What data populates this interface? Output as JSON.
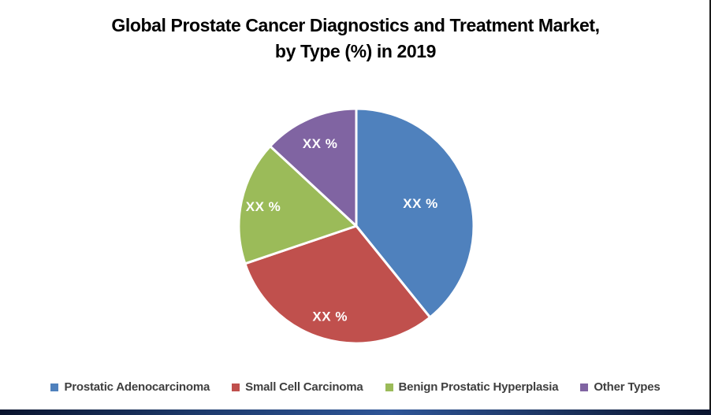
{
  "chart_title": {
    "line1": "Global Prostate Cancer Diagnostics and Treatment Market,",
    "line2": "by Type (%) in 2019"
  },
  "chart_data": {
    "type": "pie",
    "title": "Global Prostate Cancer Diagnostics and Treatment Market, by Type (%) in 2019",
    "start_angle_deg": 0,
    "direction": "clockwise",
    "legend_position": "bottom",
    "data_labels_masked": true,
    "values_estimated_from_arc_angles": true,
    "slices": [
      {
        "label": "Prostatic Adenocarcinoma",
        "data_label": "XX %",
        "value": 39.2,
        "color": "#4F81BD",
        "label_r_frac": 0.58
      },
      {
        "label": "Small Cell Carcinoma",
        "data_label": "XX %",
        "value": 30.6,
        "color": "#C0504D",
        "label_r_frac": 0.8
      },
      {
        "label": "Benign Prostatic Hyperplasia",
        "data_label": "XX %",
        "value": 17.1,
        "color": "#9BBB59",
        "label_r_frac": 0.81
      },
      {
        "label": "Other Types",
        "data_label": "XX %",
        "value": 13.1,
        "color": "#8064A2",
        "label_r_frac": 0.77
      }
    ]
  },
  "styles": {
    "title_color": "#000000",
    "legend_text_color": "#3F3F3F",
    "slice_label_color": "#FFFFFF",
    "slice_separator_color": "#FFFFFF",
    "right_border_color": "#1B1B1B",
    "footer_bar_gradient": [
      "#0A142E",
      "#1E3C6F",
      "#2E5597",
      "#16294F",
      "#0A142E"
    ]
  }
}
